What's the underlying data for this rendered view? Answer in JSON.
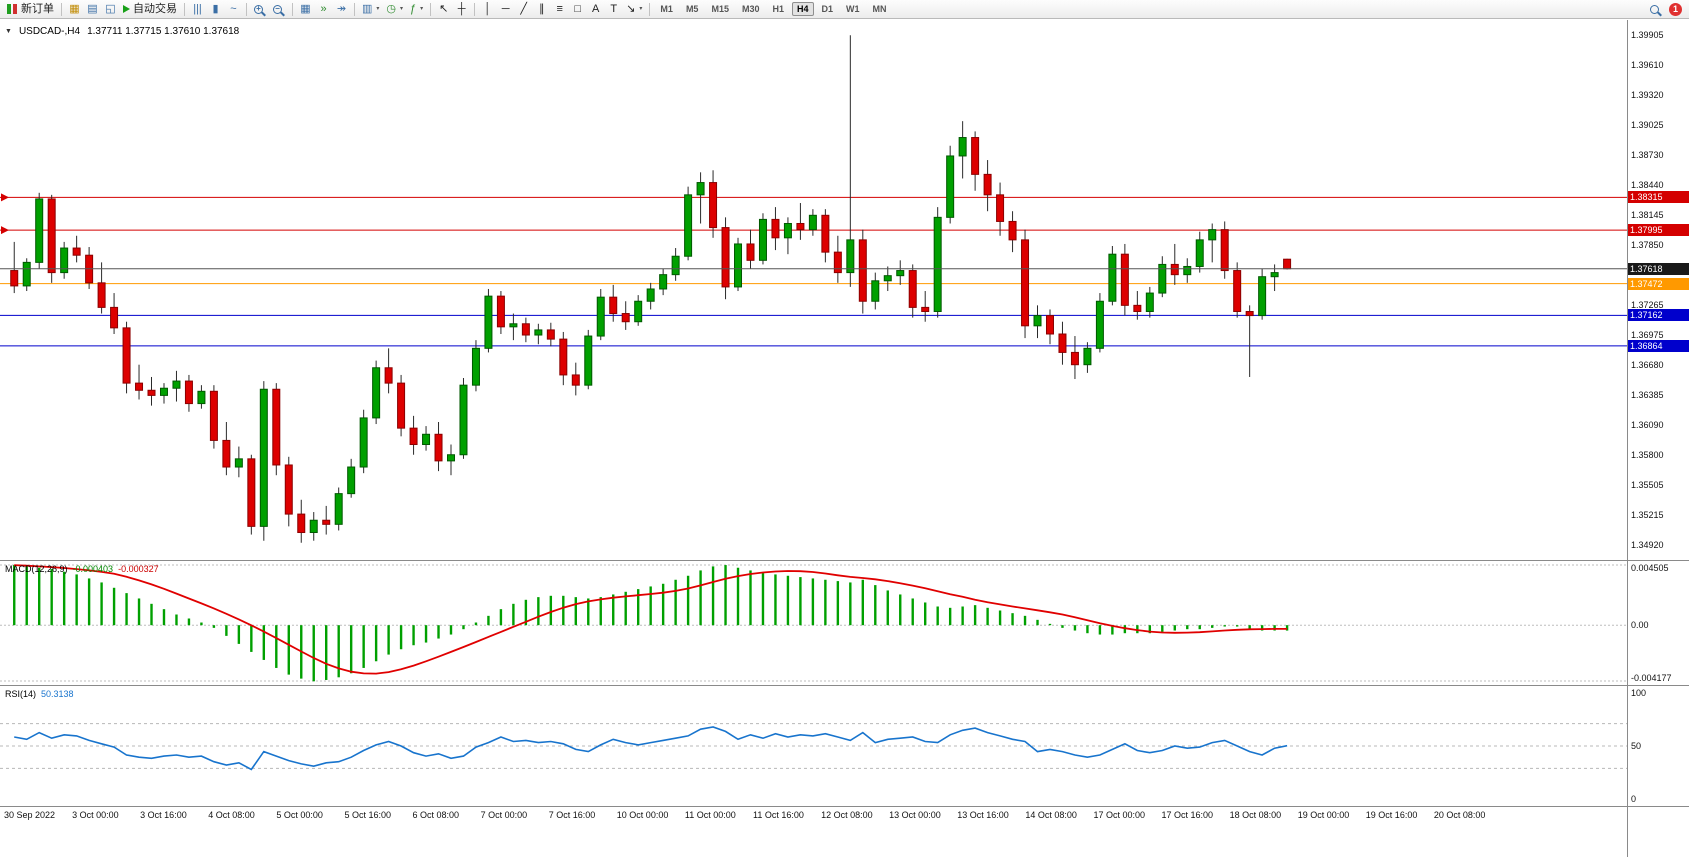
{
  "toolbar": {
    "new_order_label": "新订单",
    "autotrade_label": "自动交易",
    "timeframes": [
      "M1",
      "M5",
      "M15",
      "M30",
      "H1",
      "H4",
      "D1",
      "W1",
      "MN"
    ],
    "active_timeframe": "H4",
    "notification_count": "1",
    "icons": [
      {
        "name": "new-order-button",
        "type": "neworder",
        "label_key": "new_order_label"
      },
      {
        "name": "sep"
      },
      {
        "name": "market-watch-icon",
        "glyph": "▦",
        "color": "#c08a00"
      },
      {
        "name": "navigator-icon",
        "glyph": "▤",
        "color": "#3a6ea5"
      },
      {
        "name": "terminal-icon",
        "glyph": "◱",
        "color": "#3a6ea5"
      },
      {
        "name": "autotrade-button",
        "type": "autotrade",
        "label_key": "autotrade_label"
      },
      {
        "name": "sep"
      },
      {
        "name": "bars-chart-icon",
        "glyph": "|||",
        "color": "#3a6ea5"
      },
      {
        "name": "candle-chart-icon",
        "glyph": "▮",
        "color": "#3a6ea5"
      },
      {
        "name": "line-chart-icon",
        "glyph": "~",
        "color": "#3a6ea5"
      },
      {
        "name": "sep"
      },
      {
        "name": "zoom-in-icon",
        "type": "mag",
        "sign": "+"
      },
      {
        "name": "zoom-out-icon",
        "type": "mag",
        "sign": "−"
      },
      {
        "name": "sep"
      },
      {
        "name": "tile-windows-icon",
        "glyph": "▦",
        "color": "#3a6ea5"
      },
      {
        "name": "auto-scroll-icon",
        "glyph": "»",
        "color": "#2e8b2e"
      },
      {
        "name": "chart-shift-icon",
        "glyph": "↠",
        "color": "#3a6ea5"
      },
      {
        "name": "sep"
      },
      {
        "name": "new-chart-icon",
        "glyph": "▥",
        "color": "#3a6ea5",
        "caret": true
      },
      {
        "name": "period-icon",
        "glyph": "◷",
        "color": "#2e8b2e",
        "caret": true
      },
      {
        "name": "indicators-icon",
        "glyph": "ƒ",
        "color": "#2e8b2e",
        "caret": true
      },
      {
        "name": "sep"
      },
      {
        "name": "cursor-icon",
        "glyph": "↖",
        "color": "#222"
      },
      {
        "name": "crosshair-icon",
        "glyph": "┼",
        "color": "#222"
      },
      {
        "name": "sep"
      },
      {
        "name": "vertical-line-icon",
        "glyph": "│",
        "color": "#222"
      },
      {
        "name": "horizontal-line-icon",
        "glyph": "─",
        "color": "#222"
      },
      {
        "name": "trendline-icon",
        "glyph": "╱",
        "color": "#222"
      },
      {
        "name": "channel-icon",
        "glyph": "∥",
        "color": "#222"
      },
      {
        "name": "fibonacci-icon",
        "glyph": "≡",
        "color": "#222"
      },
      {
        "name": "shapes-icon",
        "glyph": "□",
        "color": "#222"
      },
      {
        "name": "text-icon",
        "glyph": "A",
        "color": "#222"
      },
      {
        "name": "text-label-icon",
        "glyph": "T",
        "color": "#222"
      },
      {
        "name": "arrows-tool-icon",
        "glyph": "↘",
        "color": "#222",
        "caret": true
      },
      {
        "name": "sep"
      },
      {
        "name": "timeframes",
        "type": "tf"
      },
      {
        "name": "spacer"
      },
      {
        "name": "search-icon",
        "type": "mag",
        "sign": ""
      },
      {
        "name": "notification-badge",
        "type": "badge"
      }
    ]
  },
  "chart": {
    "symbol_title": "USDCAD-,H4",
    "ohlc_text": "1.37711 1.37715 1.37610 1.37618"
  },
  "macd": {
    "label": "MACD(12,26,9)",
    "value_main": "-0.000403",
    "value_signal": "-0.000327"
  },
  "rsi": {
    "label": "RSI(14)",
    "value_text": "50.3138"
  },
  "chart_data": [
    {
      "type": "candlestick",
      "symbol": "USDCAD-",
      "timeframe": "H4",
      "ylim": [
        1.3483,
        1.3999
      ],
      "up_color": "#00a000",
      "down_color": "#dd0000",
      "y_ticks": [
        "1.39905",
        "1.39610",
        "1.39320",
        "1.39025",
        "1.38730",
        "1.38440",
        "1.38145",
        "1.37850",
        "1.37265",
        "1.36975",
        "1.36680",
        "1.36385",
        "1.36090",
        "1.35800",
        "1.35505",
        "1.35215",
        "1.34920"
      ],
      "bid": 1.37618,
      "bid_tag_color": "#1a1a1a",
      "levels": [
        {
          "price": 1.38315,
          "color": "#d40000",
          "marker": true
        },
        {
          "price": 1.37995,
          "color": "#d40000",
          "marker": true
        },
        {
          "price": 1.37472,
          "color": "#ff9900"
        },
        {
          "price": 1.37162,
          "color": "#0000cc"
        },
        {
          "price": 1.36864,
          "color": "#0000cc"
        }
      ],
      "x_labels": [
        "30 Sep 2022",
        "3 Oct 00:00",
        "3 Oct 16:00",
        "4 Oct 08:00",
        "5 Oct 00:00",
        "5 Oct 16:00",
        "6 Oct 08:00",
        "7 Oct 00:00",
        "7 Oct 16:00",
        "10 Oct 00:00",
        "11 Oct 00:00",
        "11 Oct 16:00",
        "12 Oct 08:00",
        "13 Oct 00:00",
        "13 Oct 16:00",
        "14 Oct 08:00",
        "17 Oct 00:00",
        "17 Oct 16:00",
        "18 Oct 08:00",
        "19 Oct 00:00",
        "19 Oct 16:00",
        "20 Oct 08:00"
      ],
      "candles": [
        [
          1.376,
          1.3788,
          1.3738,
          1.3745
        ],
        [
          1.3745,
          1.3772,
          1.374,
          1.3768
        ],
        [
          1.3768,
          1.3836,
          1.3762,
          1.383
        ],
        [
          1.383,
          1.3834,
          1.3748,
          1.3758
        ],
        [
          1.3758,
          1.3788,
          1.3752,
          1.3782
        ],
        [
          1.3782,
          1.3794,
          1.3768,
          1.3775
        ],
        [
          1.3775,
          1.3783,
          1.3742,
          1.3748
        ],
        [
          1.3748,
          1.3768,
          1.3718,
          1.3724
        ],
        [
          1.3724,
          1.3738,
          1.3698,
          1.3704
        ],
        [
          1.3704,
          1.371,
          1.364,
          1.365
        ],
        [
          1.365,
          1.3668,
          1.3634,
          1.3643
        ],
        [
          1.3643,
          1.3656,
          1.3628,
          1.3638
        ],
        [
          1.3638,
          1.365,
          1.363,
          1.3645
        ],
        [
          1.3645,
          1.3662,
          1.3632,
          1.3652
        ],
        [
          1.3652,
          1.3658,
          1.3622,
          1.363
        ],
        [
          1.363,
          1.3648,
          1.3625,
          1.3642
        ],
        [
          1.3642,
          1.3648,
          1.3586,
          1.3594
        ],
        [
          1.3594,
          1.3612,
          1.356,
          1.3568
        ],
        [
          1.3568,
          1.3588,
          1.3558,
          1.3576
        ],
        [
          1.3576,
          1.358,
          1.3502,
          1.351
        ],
        [
          1.351,
          1.3652,
          1.3496,
          1.3644
        ],
        [
          1.3644,
          1.365,
          1.356,
          1.357
        ],
        [
          1.357,
          1.3578,
          1.351,
          1.3522
        ],
        [
          1.3522,
          1.3536,
          1.3494,
          1.3504
        ],
        [
          1.3504,
          1.3524,
          1.3496,
          1.3516
        ],
        [
          1.3516,
          1.353,
          1.3502,
          1.3512
        ],
        [
          1.3512,
          1.3548,
          1.3506,
          1.3542
        ],
        [
          1.3542,
          1.3576,
          1.3538,
          1.3568
        ],
        [
          1.3568,
          1.3624,
          1.3562,
          1.3616
        ],
        [
          1.3616,
          1.3672,
          1.361,
          1.3665
        ],
        [
          1.3665,
          1.3684,
          1.364,
          1.365
        ],
        [
          1.365,
          1.3658,
          1.3598,
          1.3606
        ],
        [
          1.3606,
          1.3618,
          1.358,
          1.359
        ],
        [
          1.359,
          1.3608,
          1.3584,
          1.36
        ],
        [
          1.36,
          1.3612,
          1.3564,
          1.3574
        ],
        [
          1.3574,
          1.359,
          1.356,
          1.358
        ],
        [
          1.358,
          1.3655,
          1.3576,
          1.3648
        ],
        [
          1.3648,
          1.3692,
          1.3642,
          1.3684
        ],
        [
          1.3684,
          1.3742,
          1.368,
          1.3735
        ],
        [
          1.3735,
          1.374,
          1.3698,
          1.3705
        ],
        [
          1.3705,
          1.3718,
          1.3692,
          1.3708
        ],
        [
          1.3708,
          1.3714,
          1.369,
          1.3697
        ],
        [
          1.3697,
          1.3708,
          1.3688,
          1.3702
        ],
        [
          1.3702,
          1.3709,
          1.3686,
          1.3693
        ],
        [
          1.3693,
          1.37,
          1.3648,
          1.3658
        ],
        [
          1.3658,
          1.367,
          1.3638,
          1.3648
        ],
        [
          1.3648,
          1.3702,
          1.3644,
          1.3696
        ],
        [
          1.3696,
          1.3742,
          1.3692,
          1.3734
        ],
        [
          1.3734,
          1.3746,
          1.371,
          1.3718
        ],
        [
          1.3718,
          1.373,
          1.3702,
          1.371
        ],
        [
          1.371,
          1.3736,
          1.3706,
          1.373
        ],
        [
          1.373,
          1.3748,
          1.3722,
          1.3742
        ],
        [
          1.3742,
          1.3762,
          1.3736,
          1.3756
        ],
        [
          1.3756,
          1.3782,
          1.375,
          1.3774
        ],
        [
          1.3774,
          1.3842,
          1.377,
          1.3834
        ],
        [
          1.3834,
          1.3856,
          1.3806,
          1.3846
        ],
        [
          1.3846,
          1.3858,
          1.3792,
          1.3802
        ],
        [
          1.3802,
          1.3812,
          1.3732,
          1.3744
        ],
        [
          1.3744,
          1.3792,
          1.374,
          1.3786
        ],
        [
          1.3786,
          1.38,
          1.3762,
          1.377
        ],
        [
          1.377,
          1.3816,
          1.3766,
          1.381
        ],
        [
          1.381,
          1.3822,
          1.378,
          1.3792
        ],
        [
          1.3792,
          1.3812,
          1.3776,
          1.3806
        ],
        [
          1.3806,
          1.3826,
          1.379,
          1.38
        ],
        [
          1.38,
          1.382,
          1.3794,
          1.3814
        ],
        [
          1.3814,
          1.382,
          1.3768,
          1.3778
        ],
        [
          1.3778,
          1.3794,
          1.3748,
          1.3758
        ],
        [
          1.3758,
          1.399,
          1.3744,
          1.379
        ],
        [
          1.379,
          1.38,
          1.3718,
          1.373
        ],
        [
          1.373,
          1.3758,
          1.3722,
          1.375
        ],
        [
          1.375,
          1.3764,
          1.374,
          1.3755
        ],
        [
          1.3755,
          1.377,
          1.3746,
          1.376
        ],
        [
          1.376,
          1.3766,
          1.3714,
          1.3724
        ],
        [
          1.3724,
          1.374,
          1.371,
          1.372
        ],
        [
          1.372,
          1.3822,
          1.3714,
          1.3812
        ],
        [
          1.3812,
          1.3882,
          1.3806,
          1.3872
        ],
        [
          1.3872,
          1.3906,
          1.385,
          1.389
        ],
        [
          1.389,
          1.3896,
          1.3838,
          1.3854
        ],
        [
          1.3854,
          1.3868,
          1.3818,
          1.3834
        ],
        [
          1.3834,
          1.3846,
          1.3794,
          1.3808
        ],
        [
          1.3808,
          1.3818,
          1.3778,
          1.379
        ],
        [
          1.379,
          1.38,
          1.3694,
          1.3706
        ],
        [
          1.3706,
          1.3726,
          1.3694,
          1.3716
        ],
        [
          1.3716,
          1.3722,
          1.3688,
          1.3698
        ],
        [
          1.3698,
          1.371,
          1.3668,
          1.368
        ],
        [
          1.368,
          1.3696,
          1.3654,
          1.3668
        ],
        [
          1.3668,
          1.369,
          1.366,
          1.3684
        ],
        [
          1.3684,
          1.3738,
          1.368,
          1.373
        ],
        [
          1.373,
          1.3784,
          1.3726,
          1.3776
        ],
        [
          1.3776,
          1.3786,
          1.3716,
          1.3726
        ],
        [
          1.3726,
          1.374,
          1.3712,
          1.372
        ],
        [
          1.372,
          1.3744,
          1.3714,
          1.3738
        ],
        [
          1.3738,
          1.3774,
          1.3734,
          1.3766
        ],
        [
          1.3766,
          1.3786,
          1.3746,
          1.3756
        ],
        [
          1.3756,
          1.3772,
          1.3748,
          1.3764
        ],
        [
          1.3764,
          1.3798,
          1.3758,
          1.379
        ],
        [
          1.379,
          1.3806,
          1.3768,
          1.38
        ],
        [
          1.38,
          1.3808,
          1.3752,
          1.376
        ],
        [
          1.376,
          1.3768,
          1.3714,
          1.372
        ],
        [
          1.372,
          1.3726,
          1.3656,
          1.3716
        ],
        [
          1.3716,
          1.3762,
          1.3712,
          1.3754
        ],
        [
          1.3754,
          1.3766,
          1.374,
          1.3758
        ],
        [
          1.37711,
          1.37715,
          1.3761,
          1.37618
        ]
      ]
    },
    {
      "type": "bar",
      "name": "MACD(12,26,9)",
      "ylim": [
        -0.004177,
        0.004505
      ],
      "y_ticks": [
        "0.004505",
        "0.00",
        "-0.004177"
      ],
      "y_tick_values": [
        0.004505,
        0,
        -0.004177
      ],
      "bar_color": "#00a000",
      "signal_color": "#e00000",
      "signal": "sma9_of_histogram",
      "last_macd": -0.000403,
      "last_signal": -0.000327,
      "histogram": [
        0.0045,
        0.0044,
        0.0043,
        0.0042,
        0.004,
        0.0038,
        0.0035,
        0.0032,
        0.0028,
        0.0024,
        0.002,
        0.0016,
        0.0012,
        0.0008,
        0.0005,
        0.0002,
        -0.0002,
        -0.0008,
        -0.0014,
        -0.002,
        -0.0026,
        -0.0032,
        -0.0037,
        -0.004,
        -0.0042,
        -0.0041,
        -0.0039,
        -0.0036,
        -0.0032,
        -0.0027,
        -0.0022,
        -0.0018,
        -0.0015,
        -0.0013,
        -0.001,
        -0.0007,
        -0.0003,
        0.0002,
        0.0007,
        0.0012,
        0.0016,
        0.0019,
        0.0021,
        0.0022,
        0.0022,
        0.0021,
        0.002,
        0.0021,
        0.0023,
        0.0025,
        0.0027,
        0.0029,
        0.0031,
        0.0034,
        0.0037,
        0.0041,
        0.0044,
        0.0045,
        0.0043,
        0.0041,
        0.0039,
        0.0038,
        0.0037,
        0.0036,
        0.0035,
        0.0034,
        0.0033,
        0.0032,
        0.0034,
        0.003,
        0.0026,
        0.0023,
        0.002,
        0.0017,
        0.0014,
        0.0013,
        0.0014,
        0.0015,
        0.0013,
        0.0011,
        0.0009,
        0.0007,
        0.0004,
        0.0001,
        -0.0002,
        -0.0004,
        -0.0006,
        -0.0007,
        -0.0007,
        -0.0006,
        -0.0006,
        -0.0006,
        -0.0005,
        -0.0004,
        -0.0003,
        -0.0003,
        -0.0002,
        -0.0001,
        -0.0001,
        -0.0003,
        -0.0004,
        -0.0004,
        -0.000403
      ]
    },
    {
      "type": "line",
      "name": "RSI(14)",
      "ylim": [
        0,
        100
      ],
      "levels": [
        70,
        50,
        30
      ],
      "y_ticks": [
        "100",
        "50",
        "0"
      ],
      "y_tick_values": [
        100,
        50,
        0
      ],
      "line_color": "#1874cd",
      "last": 50.3138,
      "values": [
        58,
        56,
        62,
        57,
        60,
        59,
        55,
        52,
        49,
        42,
        40,
        39,
        41,
        42,
        40,
        41,
        36,
        33,
        35,
        29,
        45,
        41,
        37,
        34,
        32,
        35,
        36,
        40,
        46,
        51,
        54,
        50,
        44,
        41,
        43,
        39,
        41,
        49,
        53,
        58,
        54,
        55,
        53,
        54,
        52,
        47,
        45,
        51,
        56,
        53,
        51,
        53,
        55,
        57,
        59,
        65,
        67,
        63,
        56,
        60,
        57,
        61,
        58,
        60,
        59,
        61,
        58,
        55,
        62,
        53,
        56,
        57,
        58,
        54,
        53,
        60,
        64,
        66,
        62,
        59,
        56,
        54,
        45,
        47,
        45,
        42,
        40,
        42,
        47,
        52,
        46,
        44,
        46,
        50,
        48,
        49,
        53,
        55,
        50,
        45,
        42,
        48,
        50.31
      ]
    }
  ]
}
